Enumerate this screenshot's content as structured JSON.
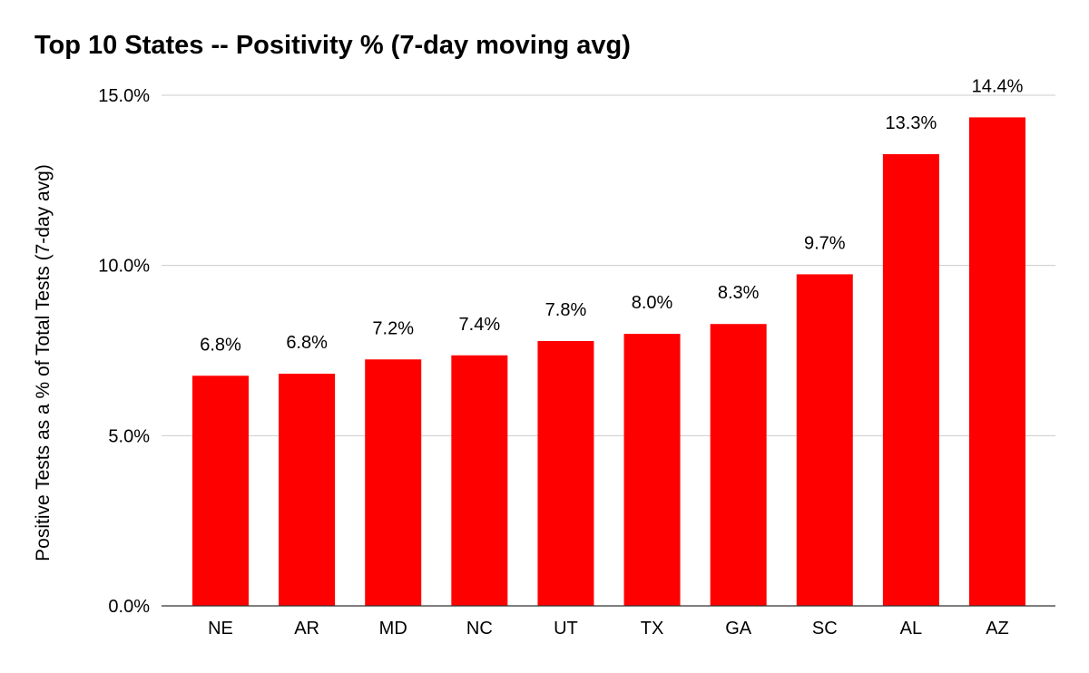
{
  "chart_data": {
    "type": "bar",
    "title": "Top 10 States -- Positivity % (7-day moving avg)",
    "xlabel": "",
    "ylabel": "Positive Tests as a % of Total Tests (7-day avg)",
    "ylim": [
      0,
      15
    ],
    "yticks": [
      0,
      5,
      10,
      15
    ],
    "ytick_labels": [
      "0.0%",
      "5.0%",
      "10.0%",
      "15.0%"
    ],
    "grid": true,
    "legend": "none",
    "categories": [
      "NE",
      "AR",
      "MD",
      "NC",
      "UT",
      "TX",
      "GA",
      "SC",
      "AL",
      "AZ"
    ],
    "values": [
      6.76,
      6.82,
      7.24,
      7.36,
      7.78,
      7.99,
      8.28,
      9.74,
      13.27,
      14.35
    ],
    "data_labels": [
      "6.8%",
      "6.8%",
      "7.2%",
      "7.4%",
      "7.8%",
      "8.0%",
      "8.3%",
      "9.7%",
      "13.3%",
      "14.4%"
    ],
    "colors": {
      "bar": "#ff0000",
      "grid": "#cccccc",
      "axis": "#333333"
    }
  }
}
